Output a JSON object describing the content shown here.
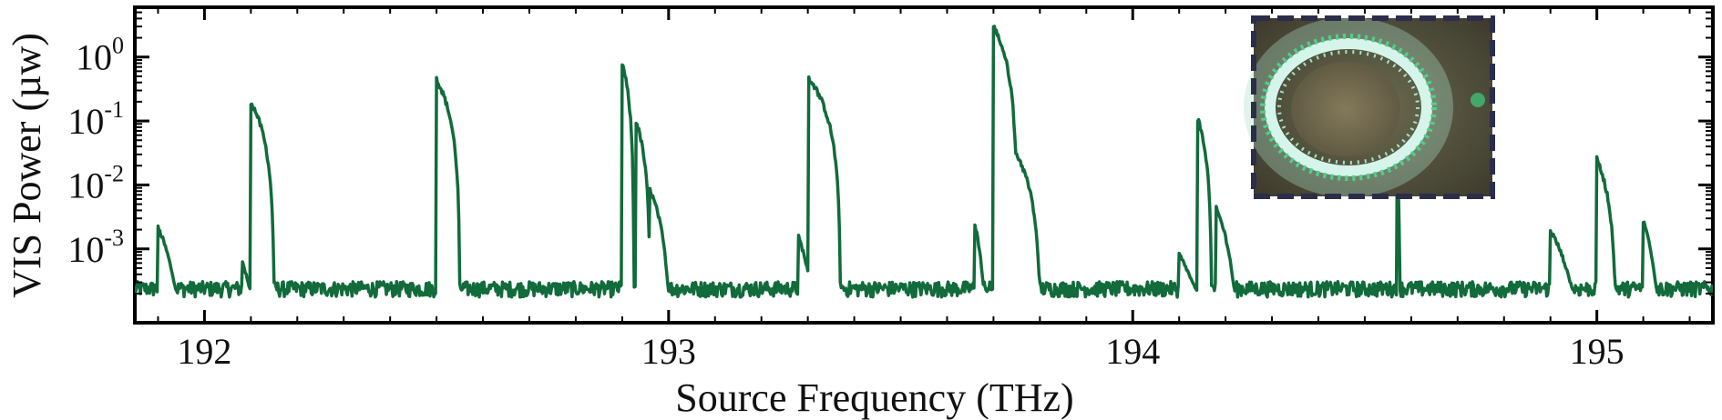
{
  "chart_data": {
    "type": "line",
    "xlabel": "Source Frequency (THz)",
    "ylabel": "VIS Power (µw)",
    "x_ticks": [
      192,
      193,
      194,
      195
    ],
    "y_ticks": [
      {
        "value": 0.001,
        "base": "10",
        "exp": "-3"
      },
      {
        "value": 0.01,
        "base": "10",
        "exp": "-2"
      },
      {
        "value": 0.1,
        "base": "10",
        "exp": "-1"
      },
      {
        "value": 1,
        "base": "10",
        "exp": "0"
      }
    ],
    "xlim": [
      191.85,
      195.25
    ],
    "ylim": [
      7e-05,
      6
    ],
    "y_scale": "log",
    "grid": false,
    "line_color": "#116b3a",
    "baseline": 0.00022,
    "peaks": [
      {
        "x": 191.9,
        "y": 0.0019,
        "width": 0.04
      },
      {
        "x": 192.08,
        "y": 0.0005,
        "width": 0.02
      },
      {
        "x": 192.1,
        "y": 0.2,
        "width": 0.05
      },
      {
        "x": 192.5,
        "y": 0.45,
        "width": 0.05
      },
      {
        "x": 192.9,
        "y": 0.8,
        "width": 0.025
      },
      {
        "x": 192.93,
        "y": 0.1,
        "width": 0.03
      },
      {
        "x": 192.96,
        "y": 0.008,
        "width": 0.04
      },
      {
        "x": 193.28,
        "y": 0.0013,
        "width": 0.03
      },
      {
        "x": 193.3,
        "y": 0.5,
        "width": 0.07
      },
      {
        "x": 193.66,
        "y": 0.0022,
        "width": 0.02
      },
      {
        "x": 193.7,
        "y": 3.0,
        "width": 0.05
      },
      {
        "x": 193.74,
        "y": 0.04,
        "width": 0.06
      },
      {
        "x": 194.1,
        "y": 0.0006,
        "width": 0.04
      },
      {
        "x": 194.14,
        "y": 0.11,
        "width": 0.03
      },
      {
        "x": 194.18,
        "y": 0.004,
        "width": 0.04
      },
      {
        "x": 194.57,
        "y": 0.03,
        "width": 0.005
      },
      {
        "x": 194.9,
        "y": 0.0017,
        "width": 0.05
      },
      {
        "x": 195.0,
        "y": 0.025,
        "width": 0.04
      },
      {
        "x": 195.1,
        "y": 0.0025,
        "width": 0.03
      }
    ],
    "inset": {
      "kind": "microscope-image",
      "content": "glowing green ring resonator",
      "border": "dashed navy"
    }
  }
}
